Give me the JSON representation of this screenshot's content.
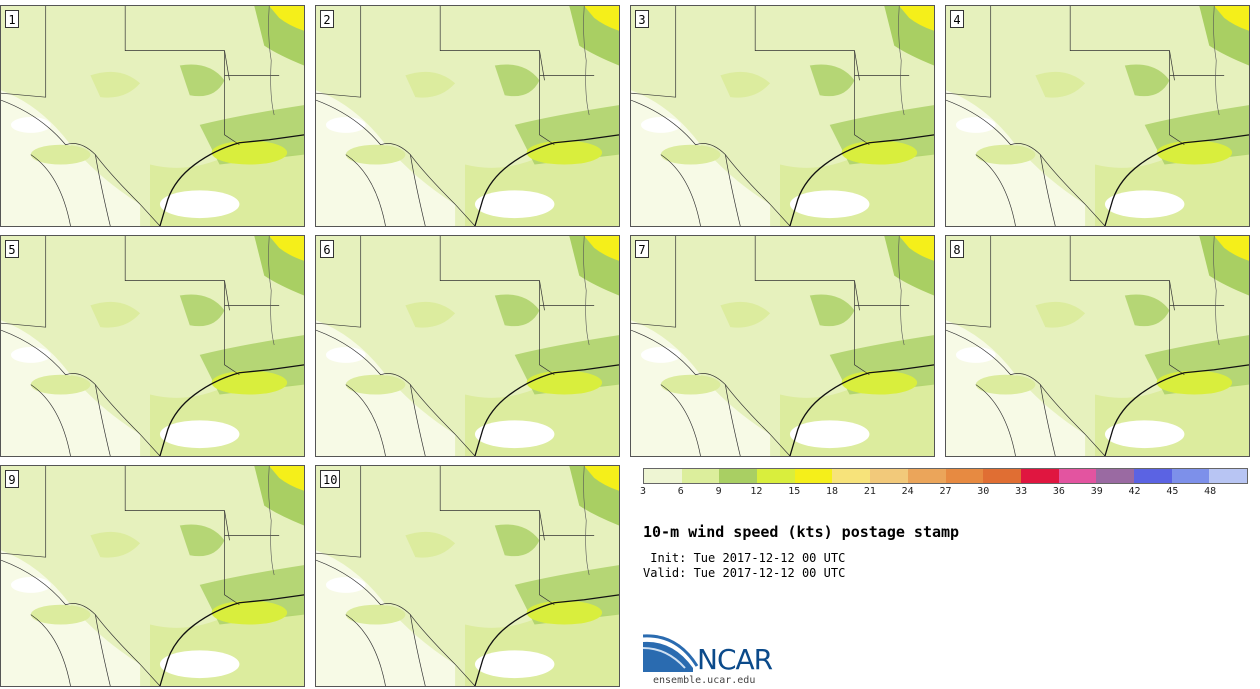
{
  "panels": [
    {
      "label": "1"
    },
    {
      "label": "2"
    },
    {
      "label": "3"
    },
    {
      "label": "4"
    },
    {
      "label": "5"
    },
    {
      "label": "6"
    },
    {
      "label": "7"
    },
    {
      "label": "8"
    },
    {
      "label": "9"
    },
    {
      "label": "10"
    }
  ],
  "legend": {
    "colors": [
      "#eef5d3",
      "#dcee9c",
      "#a9cf63",
      "#d9ee3d",
      "#f5ef1a",
      "#f7e37a",
      "#f2c97a",
      "#eba55a",
      "#e78a41",
      "#e06e33",
      "#e01640",
      "#e354a0",
      "#9a6aa2",
      "#5b63e3",
      "#7d90ea",
      "#b8c5f3"
    ],
    "ticks": [
      "3",
      "6",
      "9",
      "12",
      "15",
      "18",
      "21",
      "24",
      "27",
      "30",
      "33",
      "36",
      "39",
      "42",
      "45",
      "48"
    ]
  },
  "title": "10-m wind speed (kts) postage stamp",
  "init_line": " Init: Tue 2017-12-12 00 UTC",
  "valid_line": "Valid: Tue 2017-12-12 00 UTC",
  "logo": {
    "name": "NCAR",
    "url": "ensemble.ucar.edu"
  }
}
